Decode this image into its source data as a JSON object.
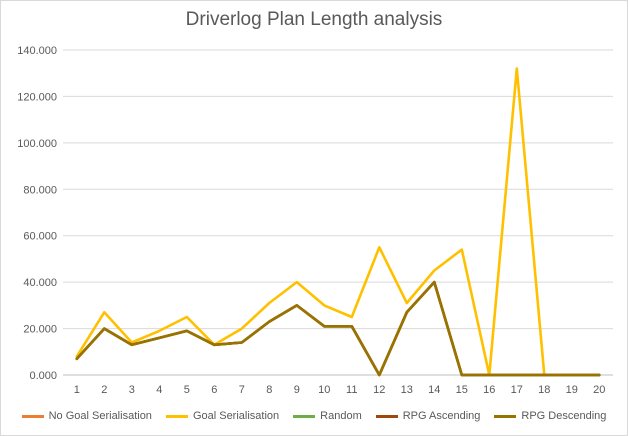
{
  "chart_data": {
    "type": "line",
    "title": "Driverlog Plan Length analysis",
    "xlabel": "",
    "ylabel": "",
    "categories": [
      "1",
      "2",
      "3",
      "4",
      "5",
      "6",
      "7",
      "8",
      "9",
      "10",
      "11",
      "12",
      "13",
      "14",
      "15",
      "16",
      "17",
      "18",
      "19",
      "20"
    ],
    "y_ticks": [
      "0.000",
      "20.000",
      "40.000",
      "60.000",
      "80.000",
      "100.000",
      "120.000",
      "140.000"
    ],
    "ylim": [
      0,
      140
    ],
    "grid": true,
    "legend_position": "bottom",
    "series": [
      {
        "name": "No Goal Serialisation",
        "color": "#ed7d31",
        "values": [
          7,
          20,
          13,
          16,
          19,
          13,
          14,
          23,
          30,
          21,
          21,
          0,
          27,
          40,
          0,
          0,
          0,
          0,
          0,
          0
        ]
      },
      {
        "name": "Goal Serialisation",
        "color": "#ffc000",
        "values": [
          8,
          27,
          14,
          19,
          25,
          13,
          20,
          31,
          40,
          30,
          25,
          55,
          31,
          45,
          54,
          0,
          132,
          0,
          0,
          0
        ]
      },
      {
        "name": "Random",
        "color": "#70ad47",
        "values": [
          7,
          20,
          13,
          16,
          19,
          13,
          14,
          23,
          30,
          21,
          21,
          0,
          27,
          40,
          0,
          0,
          0,
          0,
          0,
          0
        ]
      },
      {
        "name": "RPG Ascending",
        "color": "#9e480e",
        "values": [
          7,
          20,
          13,
          16,
          19,
          13,
          14,
          23,
          30,
          21,
          21,
          0,
          27,
          40,
          0,
          0,
          0,
          0,
          0,
          0
        ]
      },
      {
        "name": "RPG Descending",
        "color": "#997300",
        "values": [
          7,
          20,
          13,
          16,
          19,
          13,
          14,
          23,
          30,
          21,
          21,
          0,
          27,
          40,
          0,
          0,
          0,
          0,
          0,
          0
        ]
      }
    ]
  }
}
